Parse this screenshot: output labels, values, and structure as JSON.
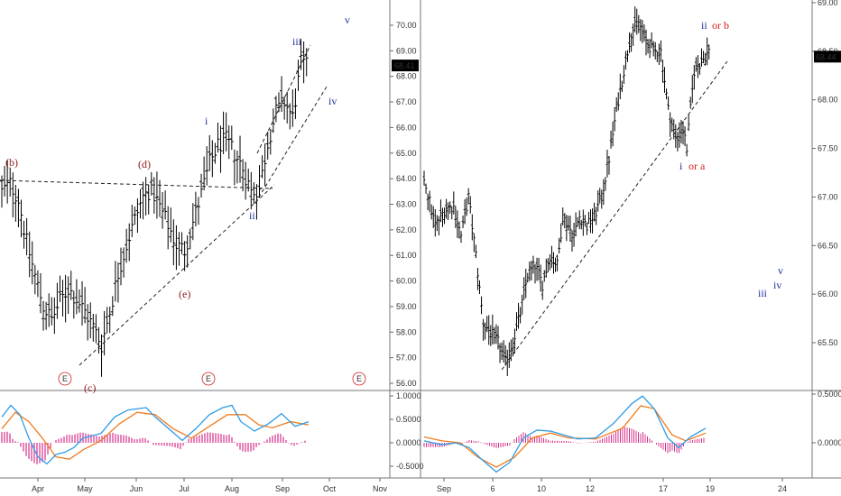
{
  "colors": {
    "bar": "#000000",
    "wave_red": "#8b1a1a",
    "wave_blue": "#1f2f9a",
    "label_red": "#d22020",
    "macd_line": "#2e9be6",
    "signal_line": "#f07c1e",
    "histogram": "#d6308a",
    "divider": "#777777",
    "price_badge_bg": "#000000",
    "price_badge_text": "#ffffff"
  },
  "chart_data": [
    {
      "type": "ohlc",
      "panel": "left",
      "ylim": [
        55.8,
        70.5
      ],
      "y_ticks": [
        "70.00",
        "69.00",
        "68.00",
        "67.00",
        "66.00",
        "65.00",
        "64.00",
        "63.00",
        "62.00",
        "61.00",
        "60.00",
        "59.00",
        "58.00",
        "57.00",
        "56.00"
      ],
      "x_ticks": [
        "Apr",
        "May",
        "Jun",
        "Jul",
        "Aug",
        "Sep",
        "Oct",
        "Nov"
      ],
      "last_price": "68.41",
      "series": [
        {
          "date_range": "Mar–Sep",
          "close_path": [
            [
              0,
              63.5
            ],
            [
              3,
              63.8
            ],
            [
              6,
              63.2
            ],
            [
              9,
              61.5
            ],
            [
              12,
              60.2
            ],
            [
              15,
              59.0
            ],
            [
              18,
              58.5
            ],
            [
              21,
              59.2
            ],
            [
              24,
              59.7
            ],
            [
              27,
              59.3
            ],
            [
              30,
              58.8
            ],
            [
              33,
              58.2
            ],
            [
              36,
              57.5
            ],
            [
              39,
              58.8
            ],
            [
              42,
              60.3
            ],
            [
              45,
              61.4
            ],
            [
              48,
              62.4
            ],
            [
              51,
              63.3
            ],
            [
              54,
              63.6
            ],
            [
              57,
              62.9
            ],
            [
              60,
              62.2
            ],
            [
              63,
              61.4
            ],
            [
              66,
              61.2
            ],
            [
              69,
              62.3
            ],
            [
              72,
              63.4
            ],
            [
              75,
              64.6
            ],
            [
              78,
              65.3
            ],
            [
              81,
              65.5
            ],
            [
              84,
              65.0
            ],
            [
              87,
              64.4
            ],
            [
              90,
              63.5
            ],
            [
              93,
              63.6
            ],
            [
              96,
              65.4
            ],
            [
              99,
              66.6
            ],
            [
              102,
              67.0
            ],
            [
              105,
              66.4
            ],
            [
              108,
              68.5
            ],
            [
              110,
              68.4
            ]
          ]
        }
      ],
      "annotations": {
        "wave_labels": [
          {
            "text": "(b)",
            "color": "red"
          },
          {
            "text": "(d)",
            "color": "red"
          },
          {
            "text": "(e)",
            "color": "red"
          },
          {
            "text": "(c)",
            "color": "red"
          },
          {
            "text": "i",
            "color": "blue"
          },
          {
            "text": "ii",
            "color": "blue"
          },
          {
            "text": "iii",
            "color": "blue"
          },
          {
            "text": "iv",
            "color": "blue"
          },
          {
            "text": "v",
            "color": "blue"
          }
        ],
        "event_markers": [
          "E",
          "E",
          "E"
        ]
      }
    },
    {
      "type": "ohlc",
      "panel": "right",
      "ylim": [
        64.85,
        69.05
      ],
      "y_ticks": [
        "69.00",
        "68.50",
        "68.00",
        "67.50",
        "67.00",
        "66.50",
        "66.00",
        "65.50"
      ],
      "x_ticks": [
        "Sep",
        "6",
        "10",
        "12",
        "17",
        "19",
        "24"
      ],
      "last_price": "68.44",
      "annotations": {
        "wave_labels": [
          {
            "text": "ii",
            "color": "blue"
          },
          {
            "text": "or b",
            "color": "red"
          },
          {
            "text": "i",
            "color": "blue"
          },
          {
            "text": "or a",
            "color": "red"
          },
          {
            "text": "iii",
            "color": "blue"
          },
          {
            "text": "iv",
            "color": "blue"
          },
          {
            "text": "v",
            "color": "blue"
          }
        ]
      }
    },
    {
      "type": "macd",
      "panel": "left-indicator",
      "y_ticks": [
        "1.0000",
        "0.5000",
        "0.0000",
        "-0.5000"
      ]
    },
    {
      "type": "macd",
      "panel": "right-indicator",
      "y_ticks": [
        "0.5000",
        "0.0000"
      ]
    }
  ]
}
